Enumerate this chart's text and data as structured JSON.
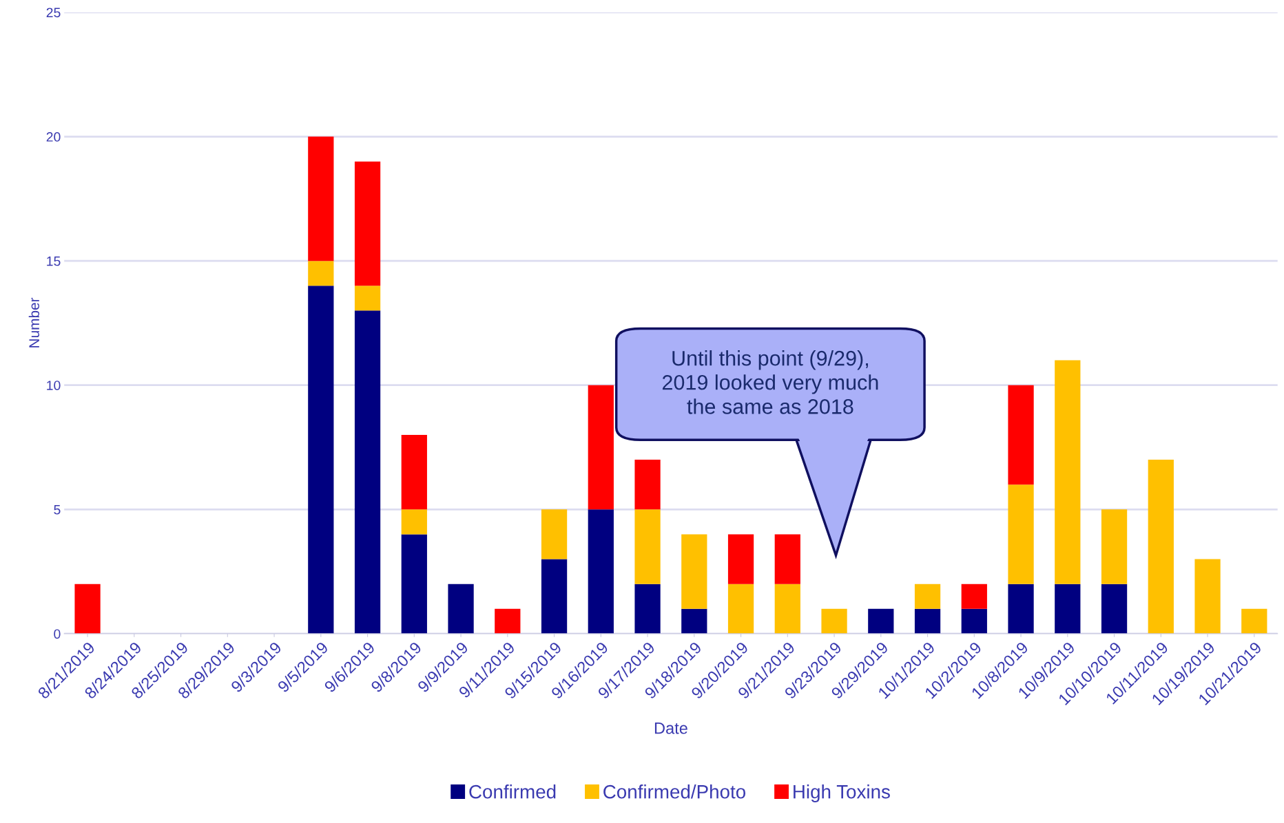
{
  "chart_data": {
    "type": "bar",
    "stacked": true,
    "xlabel": "Date",
    "ylabel": "Number",
    "categories": [
      "8/21/2019",
      "8/24/2019",
      "8/25/2019",
      "8/29/2019",
      "9/3/2019",
      "9/5/2019",
      "9/6/2019",
      "9/8/2019",
      "9/9/2019",
      "9/11/2019",
      "9/15/2019",
      "9/16/2019",
      "9/17/2019",
      "9/18/2019",
      "9/20/2019",
      "9/21/2019",
      "9/23/2019",
      "9/29/2019",
      "10/1/2019",
      "10/2/2019",
      "10/8/2019",
      "10/9/2019",
      "10/10/2019",
      "10/11/2019",
      "10/19/2019",
      "10/21/2019"
    ],
    "series": [
      {
        "name": "Confirmed",
        "color": "#000080",
        "values": [
          0,
          0,
          0,
          0,
          0,
          14,
          13,
          4,
          2,
          0,
          3,
          5,
          2,
          1,
          0,
          0,
          0,
          1,
          1,
          1,
          2,
          2,
          2,
          0,
          0,
          0
        ]
      },
      {
        "name": "Confirmed/Photo",
        "color": "#ffc000",
        "values": [
          0,
          0,
          0,
          0,
          0,
          1,
          1,
          1,
          0,
          0,
          2,
          0,
          3,
          3,
          2,
          2,
          1,
          0,
          1,
          0,
          4,
          9,
          3,
          7,
          3,
          1
        ]
      },
      {
        "name": "High Toxins",
        "color": "#ff0000",
        "values": [
          2,
          0,
          0,
          0,
          0,
          5,
          5,
          3,
          0,
          1,
          0,
          5,
          2,
          0,
          2,
          2,
          0,
          0,
          0,
          1,
          4,
          0,
          0,
          0,
          0,
          0
        ]
      }
    ],
    "ylim": [
      0,
      25
    ],
    "yticks": [
      0,
      5,
      10,
      15,
      20,
      25
    ],
    "grid": "y",
    "legend": "bottom",
    "annotations": [
      "Until this point (9/29),\n2019 looked very much\nthe same as 2018"
    ]
  }
}
